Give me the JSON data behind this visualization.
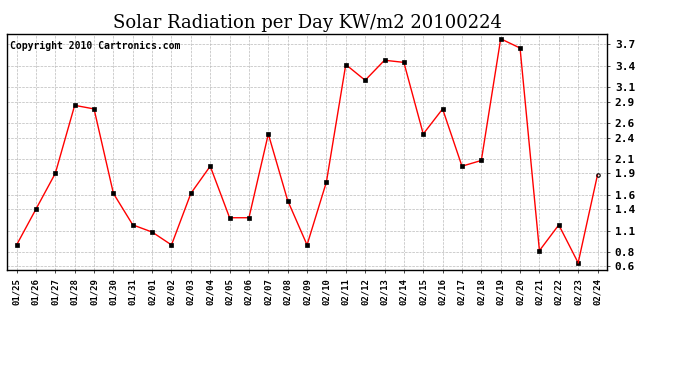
{
  "title": "Solar Radiation per Day KW/m2 20100224",
  "copyright": "Copyright 2010 Cartronics.com",
  "dates": [
    "01/25",
    "01/26",
    "01/27",
    "01/28",
    "01/29",
    "01/30",
    "01/31",
    "02/01",
    "02/02",
    "02/03",
    "02/04",
    "02/05",
    "02/06",
    "02/07",
    "02/08",
    "02/09",
    "02/10",
    "02/11",
    "02/12",
    "02/13",
    "02/14",
    "02/15",
    "02/16",
    "02/17",
    "02/18",
    "02/19",
    "02/20",
    "02/21",
    "02/22",
    "02/23",
    "02/24"
  ],
  "values": [
    0.9,
    1.4,
    1.9,
    2.85,
    2.8,
    1.62,
    1.18,
    1.08,
    0.9,
    1.62,
    2.0,
    1.28,
    1.28,
    2.45,
    1.52,
    0.9,
    1.78,
    3.42,
    3.2,
    3.48,
    3.45,
    2.45,
    2.8,
    2.0,
    2.08,
    3.78,
    3.65,
    0.82,
    1.18,
    0.65,
    1.88
  ],
  "line_color": "#ff0000",
  "marker": "s",
  "marker_size": 2.5,
  "marker_color": "#000000",
  "ylim": [
    0.55,
    3.85
  ],
  "yticks": [
    0.6,
    0.8,
    1.1,
    1.4,
    1.6,
    1.9,
    2.1,
    2.4,
    2.6,
    2.9,
    3.1,
    3.4,
    3.7
  ],
  "title_fontsize": 13,
  "copyright_fontsize": 7,
  "bg_color": "#ffffff",
  "grid_color": "#bbbbbb",
  "last_marker": "o"
}
